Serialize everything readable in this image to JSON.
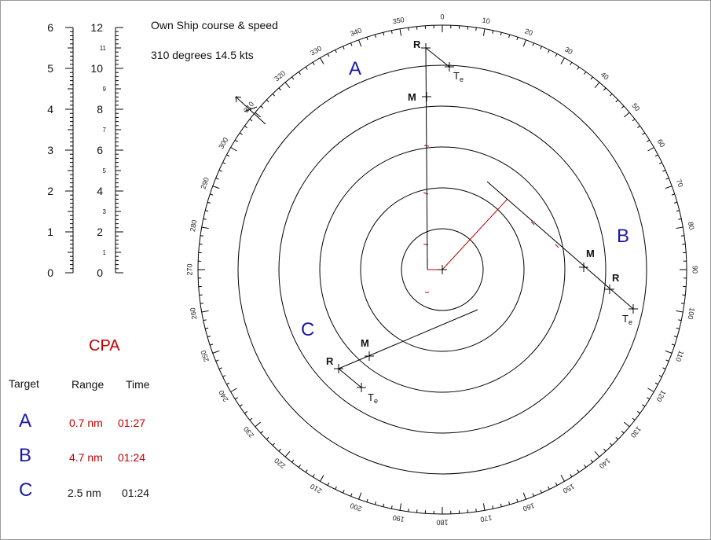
{
  "own_ship": {
    "heading_label": "Own Ship course & speed",
    "course_speed": "310 degrees  14.5 kts",
    "course_deg": 310
  },
  "scales": {
    "left_major": [
      "0",
      "1",
      "2",
      "3",
      "4",
      "5",
      "6"
    ],
    "right_major": [
      "0",
      "2",
      "4",
      "6",
      "8",
      "10",
      "12"
    ],
    "right_minor": [
      "1",
      "3",
      "5",
      "7",
      "9",
      "11"
    ]
  },
  "bearing_ring": {
    "labels": [
      "0",
      "10",
      "20",
      "30",
      "40",
      "50",
      "60",
      "70",
      "80",
      "90",
      "100",
      "110",
      "120",
      "130",
      "140",
      "150",
      "160",
      "170",
      "180",
      "190",
      "200",
      "210",
      "220",
      "230",
      "240",
      "250",
      "260",
      "270",
      "280",
      "290",
      "300",
      "310",
      "320",
      "330",
      "340",
      "350"
    ]
  },
  "targets_plot": {
    "A": {
      "label": "A",
      "marks": {
        "R": "R",
        "M": "M",
        "Te_main": "T",
        "Te_sub": "e"
      }
    },
    "B": {
      "label": "B",
      "marks": {
        "R": "R",
        "M": "M",
        "Te_main": "T",
        "Te_sub": "e"
      }
    },
    "C": {
      "label": "C",
      "marks": {
        "R": "R",
        "M": "M",
        "Te_main": "T",
        "Te_sub": "e"
      }
    }
  },
  "cpa_table": {
    "title": "CPA",
    "headers": [
      "Target",
      "Range",
      "Time"
    ],
    "rows": [
      {
        "target": "A",
        "range": "0.7 nm",
        "time": "01:27",
        "color": "#c00000"
      },
      {
        "target": "B",
        "range": "4.7 nm",
        "time": "01:24",
        "color": "#c00000"
      },
      {
        "target": "C",
        "range": "2.5 nm",
        "time": "01:24",
        "color": "#111111"
      }
    ]
  },
  "colors": {
    "target_letter": "#1a1aa8",
    "cpa_red": "#c00000",
    "line": "#000000"
  }
}
